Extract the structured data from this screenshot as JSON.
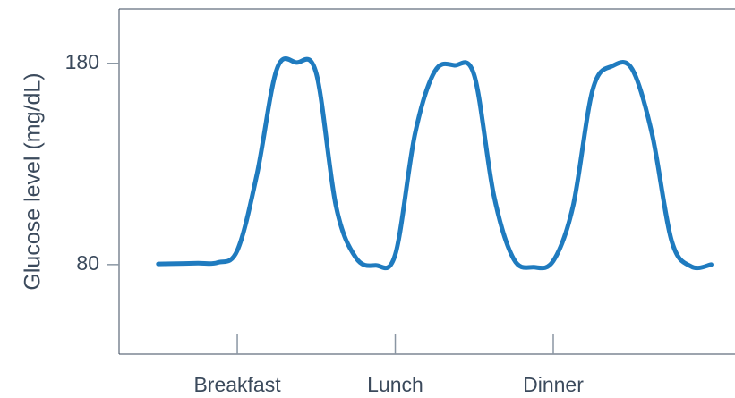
{
  "chart_data": {
    "type": "line",
    "y_label": "Glucose level (mg/dL)",
    "categories": [
      null,
      null,
      null,
      null,
      "Breakfast",
      null,
      null,
      null,
      null,
      null,
      null,
      null,
      "Lunch",
      null,
      null,
      null,
      null,
      null,
      null,
      null,
      "Dinner",
      null,
      null,
      null,
      null,
      null,
      null,
      null,
      null
    ],
    "values": [
      80.3,
      80.5,
      80.7,
      81,
      87,
      125,
      177,
      180.4,
      175,
      109,
      83.5,
      79.6,
      85,
      145,
      176,
      179,
      174,
      114,
      82.7,
      78.7,
      81.8,
      109,
      167,
      178.7,
      177,
      145,
      91.6,
      79,
      80
    ],
    "color": "#1f7bbf",
    "ylim": [
      35.5,
      207
    ],
    "yticks": [
      80,
      180
    ],
    "grid": false
  }
}
